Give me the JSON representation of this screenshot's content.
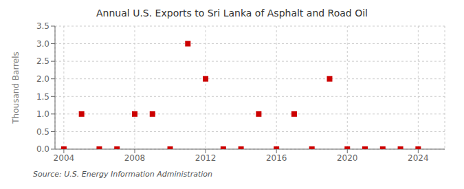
{
  "chart_data": {
    "type": "scatter",
    "title": "Annual U.S. Exports to Sri Lanka of Asphalt and Road Oil",
    "ylabel": "Thousand Barrels",
    "source": "Source: U.S. Energy Information Administration",
    "x": [
      2004,
      2005,
      2006,
      2007,
      2008,
      2009,
      2010,
      2011,
      2012,
      2013,
      2014,
      2015,
      2016,
      2017,
      2018,
      2019,
      2020,
      2021,
      2022,
      2023,
      2024
    ],
    "values": [
      0,
      1.0,
      0,
      0,
      1.0,
      1.0,
      0,
      3.0,
      2.0,
      0,
      0,
      1.0,
      0,
      1.0,
      0,
      2.0,
      0,
      0,
      0,
      0,
      0
    ],
    "color": "#cc0000",
    "marker": "square",
    "grid": true,
    "xlim": [
      2003.5,
      2025.5
    ],
    "xticks": [
      2004,
      2008,
      2012,
      2016,
      2020,
      2024
    ],
    "ylim": [
      0,
      3.5
    ],
    "yticks": [
      {
        "value": 0.0,
        "label": "0.0"
      },
      0.5,
      {
        "value": 1.0,
        "label": "1.0"
      },
      1.5,
      {
        "value": 2.0,
        "label": "2.0"
      },
      2.5,
      {
        "value": 3.0,
        "label": "3.0"
      },
      3.5
    ]
  }
}
